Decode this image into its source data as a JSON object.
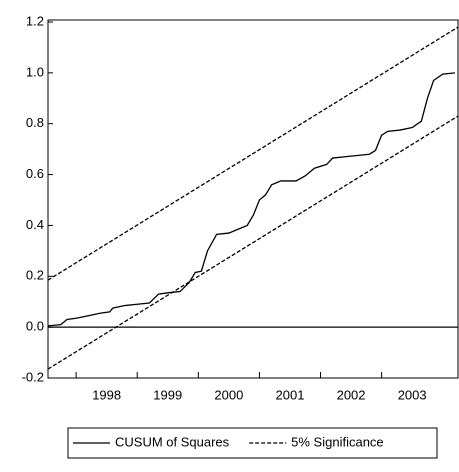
{
  "chart_data": {
    "type": "line",
    "xlim": [
      1997.54,
      2004.25
    ],
    "ylim": [
      -0.2,
      1.2
    ],
    "yticks": [
      {
        "value": -0.2,
        "label": "-0.2"
      },
      {
        "value": 0,
        "label": "0.0"
      },
      {
        "value": 0.2,
        "label": "0.2"
      },
      {
        "value": 0.4,
        "label": "0.4"
      },
      {
        "value": 0.6,
        "label": "0.6"
      },
      {
        "value": 0.8,
        "label": "0.8"
      },
      {
        "value": 1,
        "label": "1.0"
      },
      {
        "value": 1.2,
        "label": "1.2"
      }
    ],
    "xticks": [
      1998,
      1999,
      2000,
      2001,
      2002,
      2003
    ],
    "hline": 0,
    "series": [
      {
        "name": "CUSUM of Squares",
        "color": "#000000",
        "dash": false,
        "x": [
          1997.54,
          1997.75,
          1997.85,
          1998.0,
          1998.2,
          1998.4,
          1998.55,
          1998.6,
          1998.8,
          1999.0,
          1999.2,
          1999.35,
          1999.5,
          1999.7,
          1999.85,
          1999.95,
          2000.05,
          2000.15,
          2000.3,
          2000.5,
          2000.65,
          2000.8,
          2000.9,
          2001.0,
          2001.1,
          2001.2,
          2001.35,
          2001.6,
          2001.75,
          2001.9,
          2002.1,
          2002.2,
          2002.4,
          2002.6,
          2002.8,
          2002.9,
          2003.0,
          2003.1,
          2003.3,
          2003.5,
          2003.65,
          2003.75,
          2003.85,
          2004.0,
          2004.2
        ],
        "values": [
          0.005,
          0.01,
          0.03,
          0.035,
          0.045,
          0.055,
          0.06,
          0.075,
          0.085,
          0.09,
          0.095,
          0.13,
          0.135,
          0.14,
          0.175,
          0.215,
          0.22,
          0.3,
          0.365,
          0.37,
          0.385,
          0.4,
          0.44,
          0.5,
          0.52,
          0.56,
          0.575,
          0.575,
          0.595,
          0.625,
          0.64,
          0.665,
          0.67,
          0.675,
          0.68,
          0.695,
          0.755,
          0.77,
          0.775,
          0.785,
          0.81,
          0.9,
          0.97,
          0.995,
          1.0
        ]
      },
      {
        "name": "5% Significance",
        "color": "#000000",
        "dash": true,
        "x": [
          1997.54,
          2004.25
        ],
        "values": [
          0.185,
          1.18
        ]
      },
      {
        "color": "#000000",
        "dash": true,
        "x": [
          1997.54,
          2004.25
        ],
        "values": [
          -0.165,
          0.83
        ]
      }
    ]
  }
}
